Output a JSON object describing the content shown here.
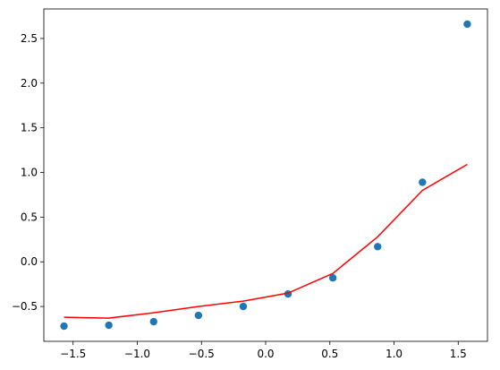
{
  "chart_data": {
    "type": "scatter",
    "x": [
      -1.5708,
      -1.2217,
      -0.8727,
      -0.5236,
      -0.1745,
      0.1745,
      0.5236,
      0.8727,
      1.2217,
      1.5708
    ],
    "series": [
      {
        "type": "scatter",
        "color": "#1f77b4",
        "values": [
          -0.72,
          -0.71,
          -0.67,
          -0.6,
          -0.5,
          -0.36,
          -0.18,
          0.17,
          0.89,
          2.66
        ]
      },
      {
        "type": "line",
        "color": "#ff0000",
        "values": [
          -0.62,
          -0.63,
          -0.57,
          -0.5,
          -0.44,
          -0.35,
          -0.13,
          0.28,
          0.8,
          1.09
        ]
      }
    ],
    "xlim": [
      -1.728,
      1.728
    ],
    "ylim": [
      -0.89,
      2.83
    ],
    "xticks": [
      {
        "value": -1.5,
        "label": "−1.5"
      },
      {
        "value": -1.0,
        "label": "−1.0"
      },
      {
        "value": -0.5,
        "label": "−0.5"
      },
      {
        "value": 0,
        "label": "0.0"
      },
      {
        "value": 0.5,
        "label": "0.5"
      },
      {
        "value": 1.0,
        "label": "1.0"
      },
      {
        "value": 1.5,
        "label": "1.5"
      }
    ],
    "yticks": [
      {
        "value": -0.5,
        "label": "−0.5"
      },
      {
        "value": 0,
        "label": "0.0"
      },
      {
        "value": 0.5,
        "label": "0.5"
      },
      {
        "value": 1.0,
        "label": "1.0"
      },
      {
        "value": 1.5,
        "label": "1.5"
      },
      {
        "value": 2.0,
        "label": "2.0"
      },
      {
        "value": 2.5,
        "label": "2.5"
      }
    ]
  }
}
